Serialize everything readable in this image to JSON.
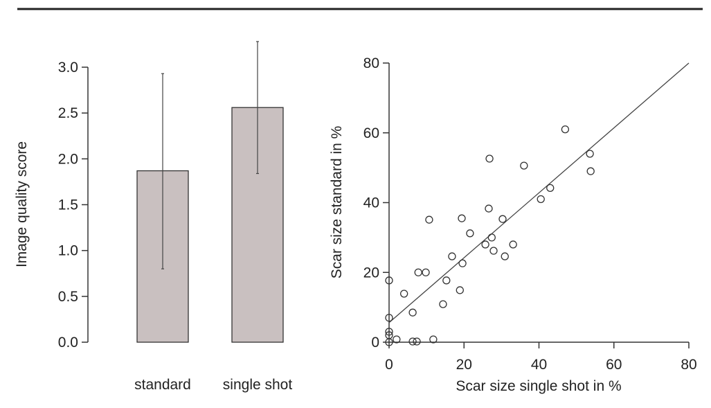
{
  "chart_data": [
    {
      "type": "bar",
      "categories": [
        "standard",
        "single shot"
      ],
      "values": [
        1.87,
        2.56
      ],
      "error_bars": [
        [
          0.8,
          2.93
        ],
        [
          1.84,
          3.28
        ]
      ],
      "title": "",
      "xlabel": "",
      "ylabel": "Image quality score",
      "ylim": [
        0,
        3.0
      ],
      "yticks": [
        "0.0",
        "0.5",
        "1.0",
        "1.5",
        "2.0",
        "2.5",
        "3.0"
      ],
      "grid": false,
      "bar_color": "#c9c0c0"
    },
    {
      "type": "scatter",
      "title": "",
      "xlabel": "Scar size single shot in %",
      "ylabel": "Scar size standard in %",
      "xlim": [
        0,
        80
      ],
      "ylim": [
        0,
        80
      ],
      "xticks": [
        "0",
        "20",
        "40",
        "60",
        "80"
      ],
      "yticks": [
        "0",
        "20",
        "40",
        "60",
        "80"
      ],
      "grid": false,
      "points": [
        [
          47,
          61
        ],
        [
          53.6,
          54
        ],
        [
          53.8,
          49
        ],
        [
          26.8,
          52.6
        ],
        [
          36,
          50.6
        ],
        [
          43,
          44.2
        ],
        [
          40.5,
          41
        ],
        [
          26.6,
          38.3
        ],
        [
          10.7,
          35.1
        ],
        [
          19.4,
          35.5
        ],
        [
          30.3,
          35.3
        ],
        [
          21.6,
          31.2
        ],
        [
          27.4,
          30
        ],
        [
          25.7,
          28
        ],
        [
          33.1,
          28
        ],
        [
          27.9,
          26.2
        ],
        [
          30.9,
          24.6
        ],
        [
          16.8,
          24.6
        ],
        [
          19.6,
          22.6
        ],
        [
          7.8,
          20
        ],
        [
          9.8,
          20
        ],
        [
          0,
          17.7
        ],
        [
          15.3,
          17.7
        ],
        [
          18.9,
          14.9
        ],
        [
          4,
          13.9
        ],
        [
          14.4,
          10.9
        ],
        [
          6.3,
          8.5
        ],
        [
          0,
          7
        ],
        [
          0,
          3
        ],
        [
          0,
          2
        ],
        [
          2,
          0.8
        ],
        [
          11.8,
          0.8
        ],
        [
          6.3,
          0.2
        ],
        [
          7.4,
          0.2
        ],
        [
          0,
          0
        ]
      ],
      "fit_line": {
        "intercept": 5.6,
        "slope": 0.93
      }
    }
  ]
}
